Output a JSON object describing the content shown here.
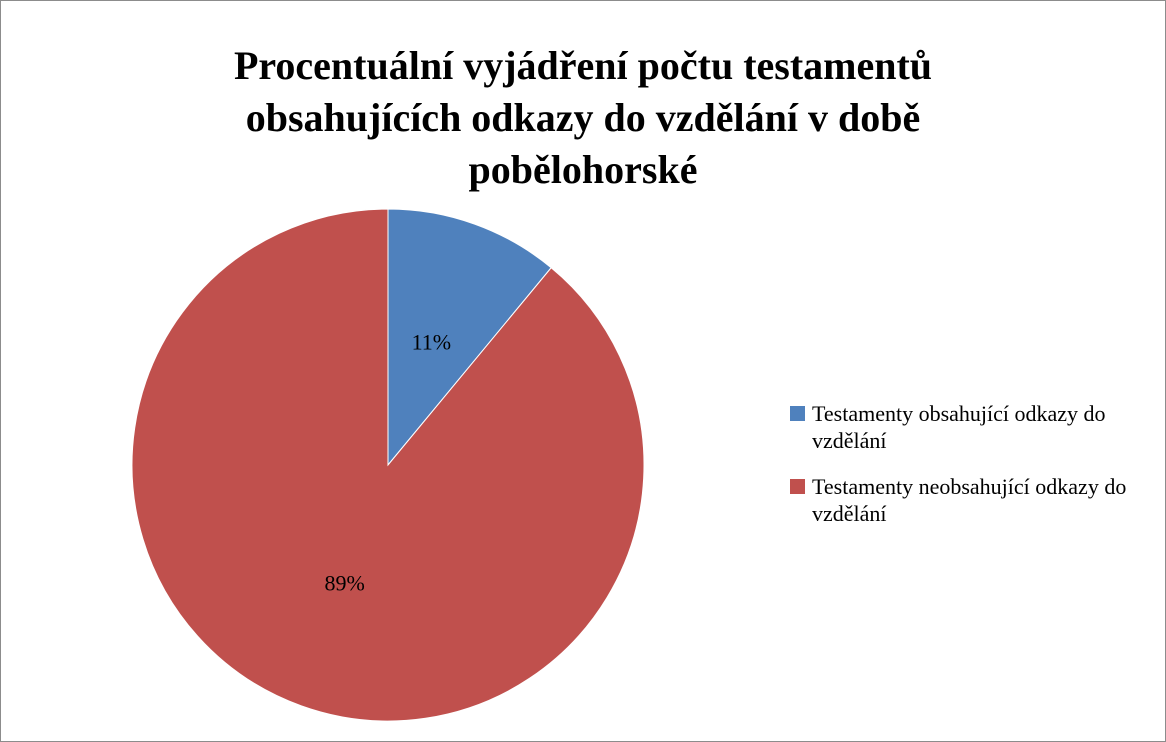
{
  "chart_data": {
    "type": "pie",
    "title": "Procentuální vyjádření počtu testamentů obsahujících odkazy do vzdělání v době pobělohorské",
    "categories": [
      "Testamenty obsahující odkazy do vzdělání",
      "Testamenty neobsahující odkazy do vzdělání"
    ],
    "values": [
      11,
      89
    ],
    "value_labels": [
      "11%",
      "89%"
    ],
    "colors": [
      "#4f81bd",
      "#c0504d"
    ],
    "legend": "right"
  }
}
